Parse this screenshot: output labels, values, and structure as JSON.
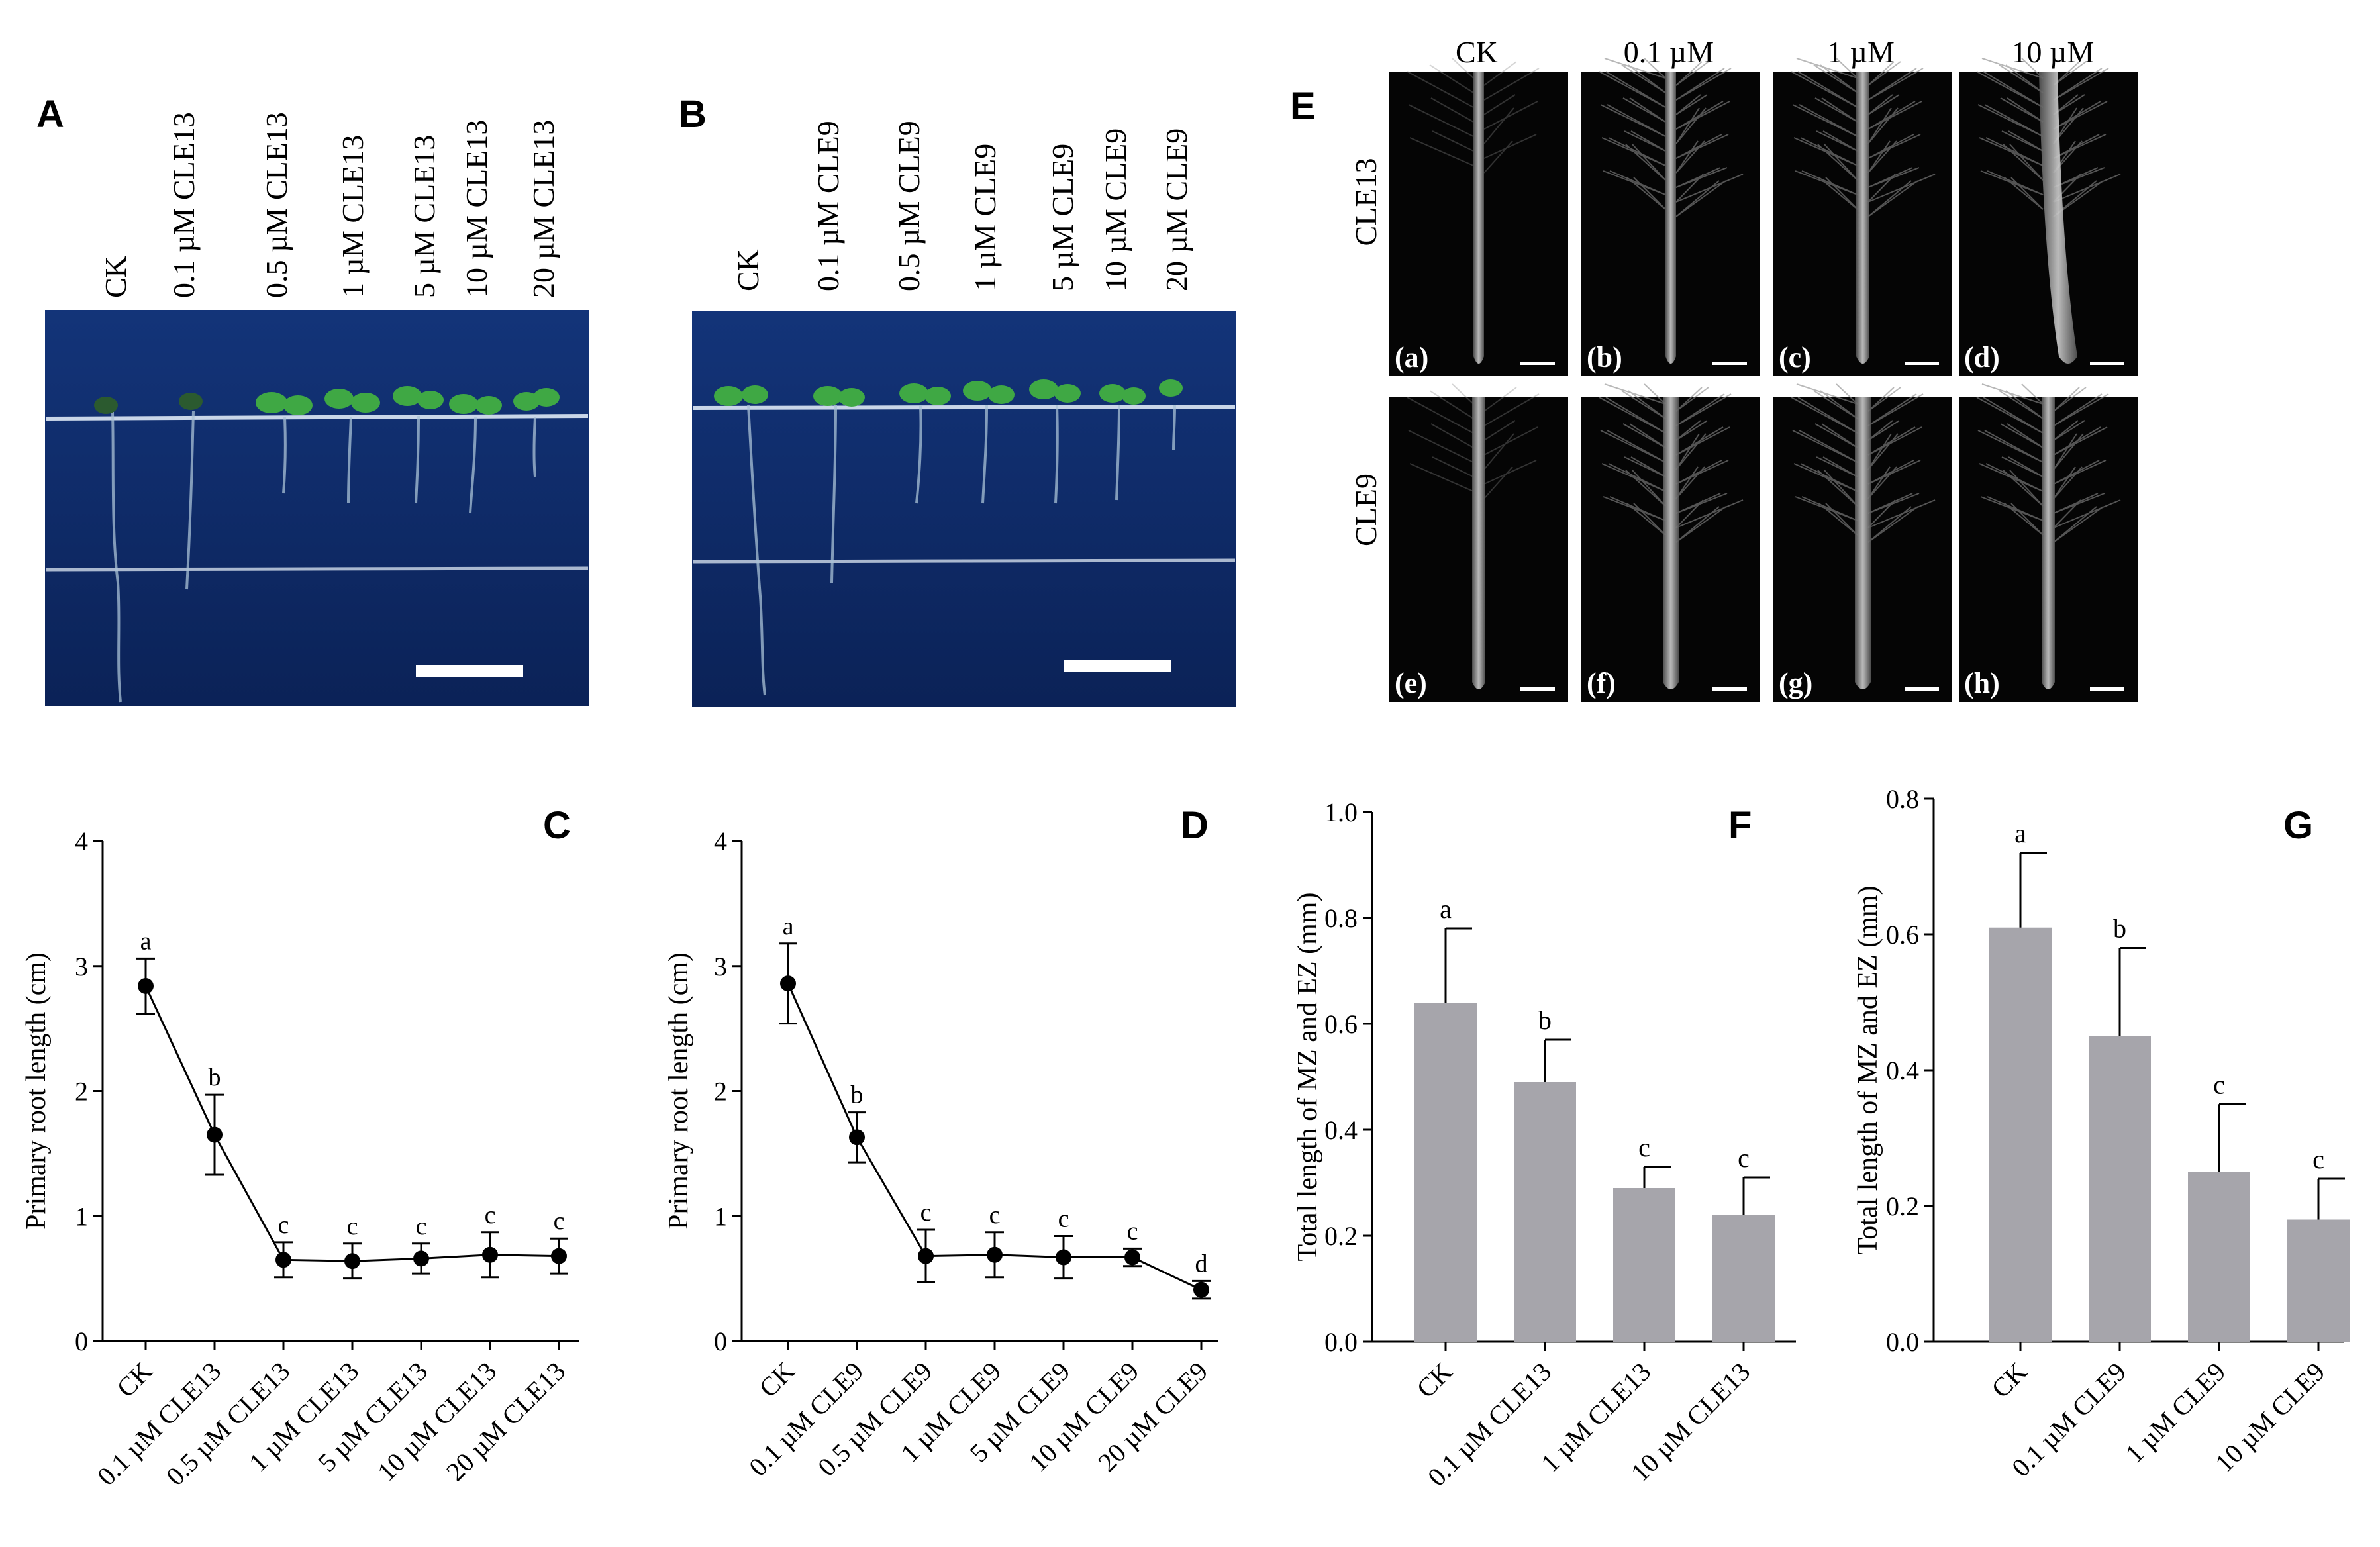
{
  "panels": {
    "A": {
      "letter": "A",
      "column_labels": [
        "CK",
        "0.1 µM CLE13",
        "0.5 µM CLE13",
        "1 µM CLE13",
        "5 µM CLE13",
        "10 µM CLE13",
        "20 µM CLE13"
      ]
    },
    "B": {
      "letter": "B",
      "column_labels": [
        "CK",
        "0.1 µM CLE9",
        "0.5 µM CLE9",
        "1 µM CLE9",
        "5 µM CLE9",
        "10 µM CLE9",
        "20 µM CLE9"
      ]
    },
    "E": {
      "letter": "E",
      "column_labels": [
        "CK",
        "0.1 µM",
        "1 µM",
        "10  µM"
      ],
      "row_labels": [
        "CLE13",
        "CLE9"
      ],
      "image_labels": [
        "(a)",
        "(b)",
        "(c)",
        "(d)",
        "(e)",
        "(f)",
        "(g)",
        "(h)"
      ]
    }
  },
  "colors": {
    "bar_fill": "#a6a5ab",
    "photo_blue": "#0e2a66",
    "micro_bg": "#050505",
    "line": "#000000"
  },
  "chart_data": [
    {
      "id": "C",
      "panel_letter": "C",
      "type": "line",
      "categories": [
        "CK",
        "0.1 µM CLE13",
        "0.5 µM CLE13",
        "1 µM CLE13",
        "5 µM CLE13",
        "10 µM CLE13",
        "20 µM CLE13"
      ],
      "values": [
        2.84,
        1.65,
        0.65,
        0.64,
        0.66,
        0.69,
        0.68
      ],
      "errors": [
        0.22,
        0.32,
        0.14,
        0.14,
        0.12,
        0.18,
        0.14
      ],
      "letters": [
        "a",
        "b",
        "c",
        "c",
        "c",
        "c",
        "c"
      ],
      "ylabel": "Primary root length (cm)",
      "xlabel": "",
      "ylim": [
        0,
        4
      ],
      "yticks": [
        "0",
        "1",
        "2",
        "3",
        "4"
      ]
    },
    {
      "id": "D",
      "panel_letter": "D",
      "type": "line",
      "categories": [
        "CK",
        "0.1 µM CLE9",
        "0.5 µM CLE9",
        "1 µM CLE9",
        "5 µM CLE9",
        "10 µM CLE9",
        "20 µM CLE9"
      ],
      "values": [
        2.86,
        1.63,
        0.68,
        0.69,
        0.67,
        0.67,
        0.41
      ],
      "errors": [
        0.32,
        0.2,
        0.21,
        0.18,
        0.17,
        0.07,
        0.07
      ],
      "letters": [
        "a",
        "b",
        "c",
        "c",
        "c",
        "c",
        "d"
      ],
      "ylabel": "Primary root length (cm)",
      "xlabel": "",
      "ylim": [
        0,
        4
      ],
      "yticks": [
        "0",
        "1",
        "2",
        "3",
        "4"
      ]
    },
    {
      "id": "F",
      "panel_letter": "F",
      "type": "bar",
      "categories": [
        "CK",
        "0.1 µM CLE13",
        "1 µM CLE13",
        "10 µM CLE13"
      ],
      "values": [
        0.64,
        0.49,
        0.29,
        0.24
      ],
      "errors": [
        0.14,
        0.08,
        0.04,
        0.07
      ],
      "letters": [
        "a",
        "b",
        "c",
        "c"
      ],
      "ylabel": "Total length of MZ and EZ (mm)",
      "xlabel": "",
      "ylim": [
        0,
        1.0
      ],
      "yticks": [
        "0.0",
        "0.2",
        "0.4",
        "0.6",
        "0.8",
        "1.0"
      ]
    },
    {
      "id": "G",
      "panel_letter": "G",
      "type": "bar",
      "categories": [
        "CK",
        "0.1 µM CLE9",
        "1 µM CLE9",
        "10 µM CLE9"
      ],
      "values": [
        0.61,
        0.45,
        0.25,
        0.18
      ],
      "errors": [
        0.11,
        0.13,
        0.1,
        0.06
      ],
      "letters": [
        "a",
        "b",
        "c",
        "c"
      ],
      "ylabel": "Total length of MZ and EZ (mm)",
      "xlabel": "",
      "ylim": [
        0,
        0.8
      ],
      "yticks": [
        "0.0",
        "0.2",
        "0.4",
        "0.6",
        "0.8"
      ]
    }
  ]
}
